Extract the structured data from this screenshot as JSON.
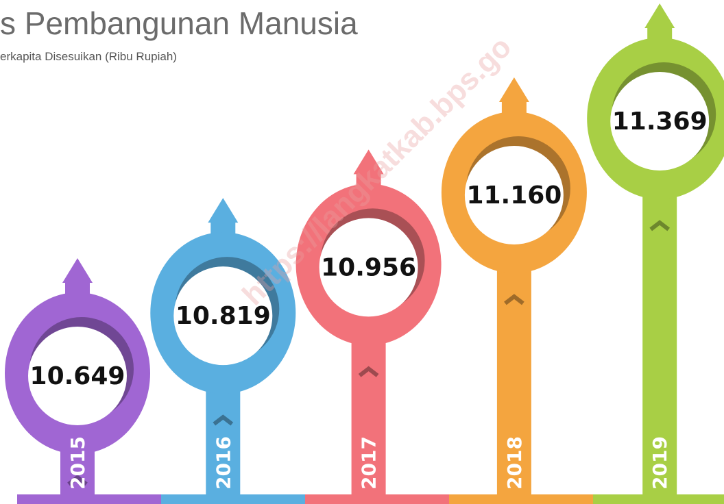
{
  "chart_data": {
    "type": "pin",
    "title": "s Pembangunan Manusia",
    "subtitle": "erkapita Disesuikan (Ribu Rupiah)",
    "watermark": "https://langkatkab.bps.go",
    "categories": [
      "2015",
      "2016",
      "2017",
      "2018",
      "2019"
    ],
    "values": [
      10649,
      10819,
      10956,
      11160,
      11369
    ],
    "value_labels": [
      "10.649",
      "10.819",
      "10.956",
      "11.160",
      "11.369"
    ],
    "colors": [
      "#a066d3",
      "#5aafe0",
      "#f2727a",
      "#f4a53f",
      "#a8cf45"
    ]
  }
}
